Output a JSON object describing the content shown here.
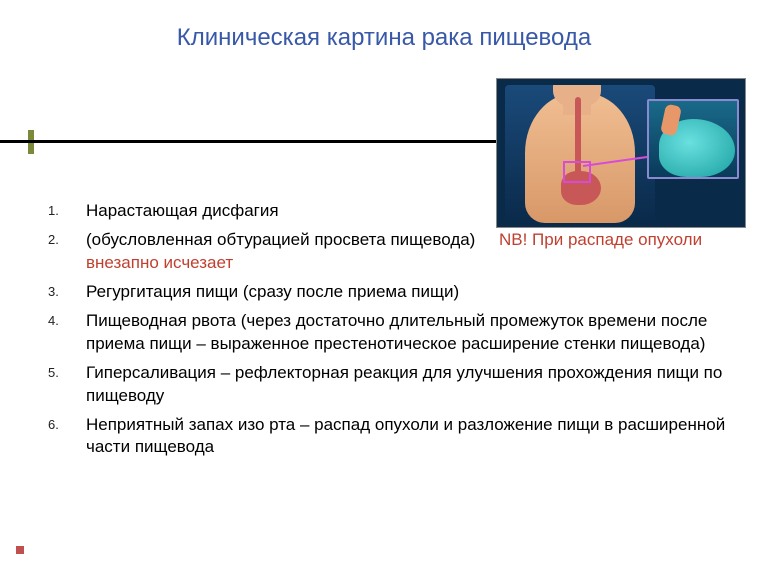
{
  "title": "Клиническая картина рака пищевода",
  "items": [
    {
      "n": "1.",
      "text": "Нарастающая дисфагия"
    },
    {
      "n": "2.",
      "text": "(обусловленная обтурацией просвета пищевода)",
      "nb": "NB! При распаде опухоли внезапно исчезает"
    },
    {
      "n": "3.",
      "text": "Регургитация пищи (сразу после приема пищи)"
    },
    {
      "n": "4.",
      "text": "Пищеводная рвота (через достаточно длительный промежуток времени после приема пищи – выраженное престенотическое расширение стенки пищевода)"
    },
    {
      "n": "5.",
      "text": "Гиперсаливация – рефлекторная реакция для улучшения прохождения пищи по пищеводу"
    },
    {
      "n": "6.",
      "text": "Неприятный запах изо рта – распад опухоли и разложение пищи в расширенной части пищевода"
    }
  ],
  "colors": {
    "title": "#3858a8",
    "nb": "#c04030",
    "tick": "#7a8a3a",
    "illus_bg": "#0a2a4a",
    "callout": "#d84ad8"
  }
}
